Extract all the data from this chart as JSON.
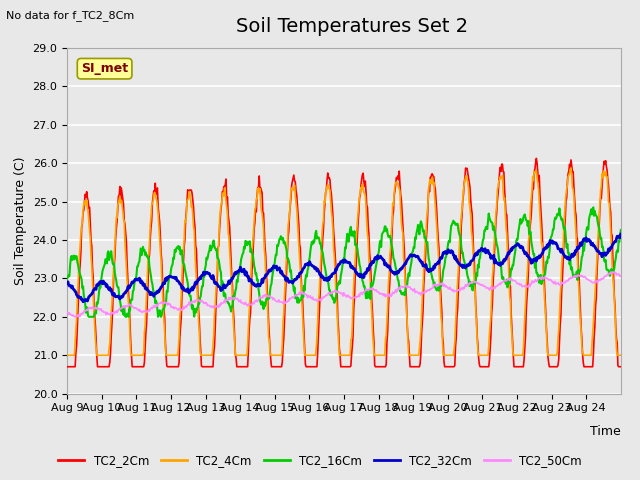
{
  "title": "Soil Temperatures Set 2",
  "no_data_label": "No data for f_TC2_8Cm",
  "xlabel": "Time",
  "ylabel": "Soil Temperature (C)",
  "ylim": [
    20.0,
    29.0
  ],
  "yticks": [
    20.0,
    21.0,
    22.0,
    23.0,
    24.0,
    25.0,
    26.0,
    27.0,
    28.0,
    29.0
  ],
  "xticklabels": [
    "Aug 9",
    "Aug 10",
    "Aug 11",
    "Aug 12",
    "Aug 13",
    "Aug 14",
    "Aug 15",
    "Aug 16",
    "Aug 17",
    "Aug 18",
    "Aug 19",
    "Aug 20",
    "Aug 21",
    "Aug 22",
    "Aug 23",
    "Aug 24"
  ],
  "series": {
    "TC2_2Cm": {
      "color": "#FF0000",
      "lw": 1.2
    },
    "TC2_4Cm": {
      "color": "#FFA500",
      "lw": 1.2
    },
    "TC2_16Cm": {
      "color": "#00CC00",
      "lw": 1.5
    },
    "TC2_32Cm": {
      "color": "#0000CC",
      "lw": 2.0
    },
    "TC2_50Cm": {
      "color": "#FF88FF",
      "lw": 1.2
    }
  },
  "bg_color": "#E8E8E8",
  "grid_color": "#FFFFFF",
  "si_met_box_color": "#FFFF99",
  "si_met_text_color": "#800000",
  "title_fontsize": 14,
  "label_fontsize": 9,
  "tick_fontsize": 8
}
